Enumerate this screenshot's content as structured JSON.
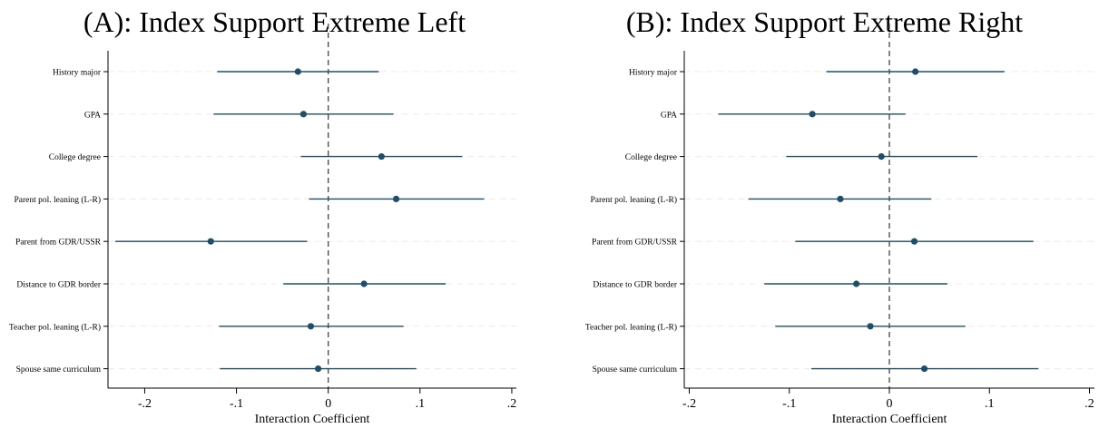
{
  "chart_data": [
    {
      "type": "coefficient-plot",
      "title": "(A): Index Support Extreme Left",
      "xlabel": "Interaction Coefficient",
      "xlim": [
        -0.24,
        0.205
      ],
      "xticks": [
        -0.2,
        -0.1,
        0,
        0.1,
        0.2
      ],
      "xtick_labels": [
        "-.2",
        "-.1",
        "0",
        ".1",
        ".2"
      ],
      "reference_line": 0,
      "grid": "horizontal-dashed",
      "series_color": "#1f4e6b",
      "rows": [
        {
          "label": "History major",
          "estimate": -0.033,
          "ci": [
            -0.121,
            0.055
          ]
        },
        {
          "label": "GPA",
          "estimate": -0.027,
          "ci": [
            -0.125,
            0.071
          ]
        },
        {
          "label": "College degree",
          "estimate": 0.058,
          "ci": [
            -0.03,
            0.146
          ]
        },
        {
          "label": "Parent pol. leaning (L-R)",
          "estimate": 0.074,
          "ci": [
            -0.021,
            0.17
          ]
        },
        {
          "label": "Parent from GDR/USSR",
          "estimate": -0.128,
          "ci": [
            -0.232,
            -0.023
          ]
        },
        {
          "label": "Distance to GDR border",
          "estimate": 0.039,
          "ci": [
            -0.049,
            0.128
          ]
        },
        {
          "label": "Teacher pol. leaning (L-R)",
          "estimate": -0.019,
          "ci": [
            -0.119,
            0.082
          ]
        },
        {
          "label": "Spouse same curriculum",
          "estimate": -0.011,
          "ci": [
            -0.118,
            0.096
          ]
        }
      ]
    },
    {
      "type": "coefficient-plot",
      "title": "(B): Index Support Extreme Right",
      "xlabel": "Interaction Coefficient",
      "xlim": [
        -0.205,
        0.205
      ],
      "xticks": [
        -0.2,
        -0.1,
        0,
        0.1,
        0.2
      ],
      "xtick_labels": [
        "-.2",
        "-.1",
        "0",
        ".1",
        ".2"
      ],
      "reference_line": 0,
      "grid": "horizontal-dashed",
      "series_color": "#1f4e6b",
      "rows": [
        {
          "label": "History major",
          "estimate": 0.026,
          "ci": [
            -0.063,
            0.115
          ]
        },
        {
          "label": "GPA",
          "estimate": -0.077,
          "ci": [
            -0.171,
            0.016
          ]
        },
        {
          "label": "College degree",
          "estimate": -0.008,
          "ci": [
            -0.103,
            0.088
          ]
        },
        {
          "label": "Parent pol. leaning (L-R)",
          "estimate": -0.049,
          "ci": [
            -0.141,
            0.042
          ]
        },
        {
          "label": "Parent from GDR/USSR",
          "estimate": 0.025,
          "ci": [
            -0.094,
            0.144
          ]
        },
        {
          "label": "Distance to GDR border",
          "estimate": -0.033,
          "ci": [
            -0.125,
            0.058
          ]
        },
        {
          "label": "Teacher pol. leaning (L-R)",
          "estimate": -0.019,
          "ci": [
            -0.114,
            0.076
          ]
        },
        {
          "label": "Spouse same curriculum",
          "estimate": 0.035,
          "ci": [
            -0.078,
            0.149
          ]
        }
      ]
    }
  ]
}
